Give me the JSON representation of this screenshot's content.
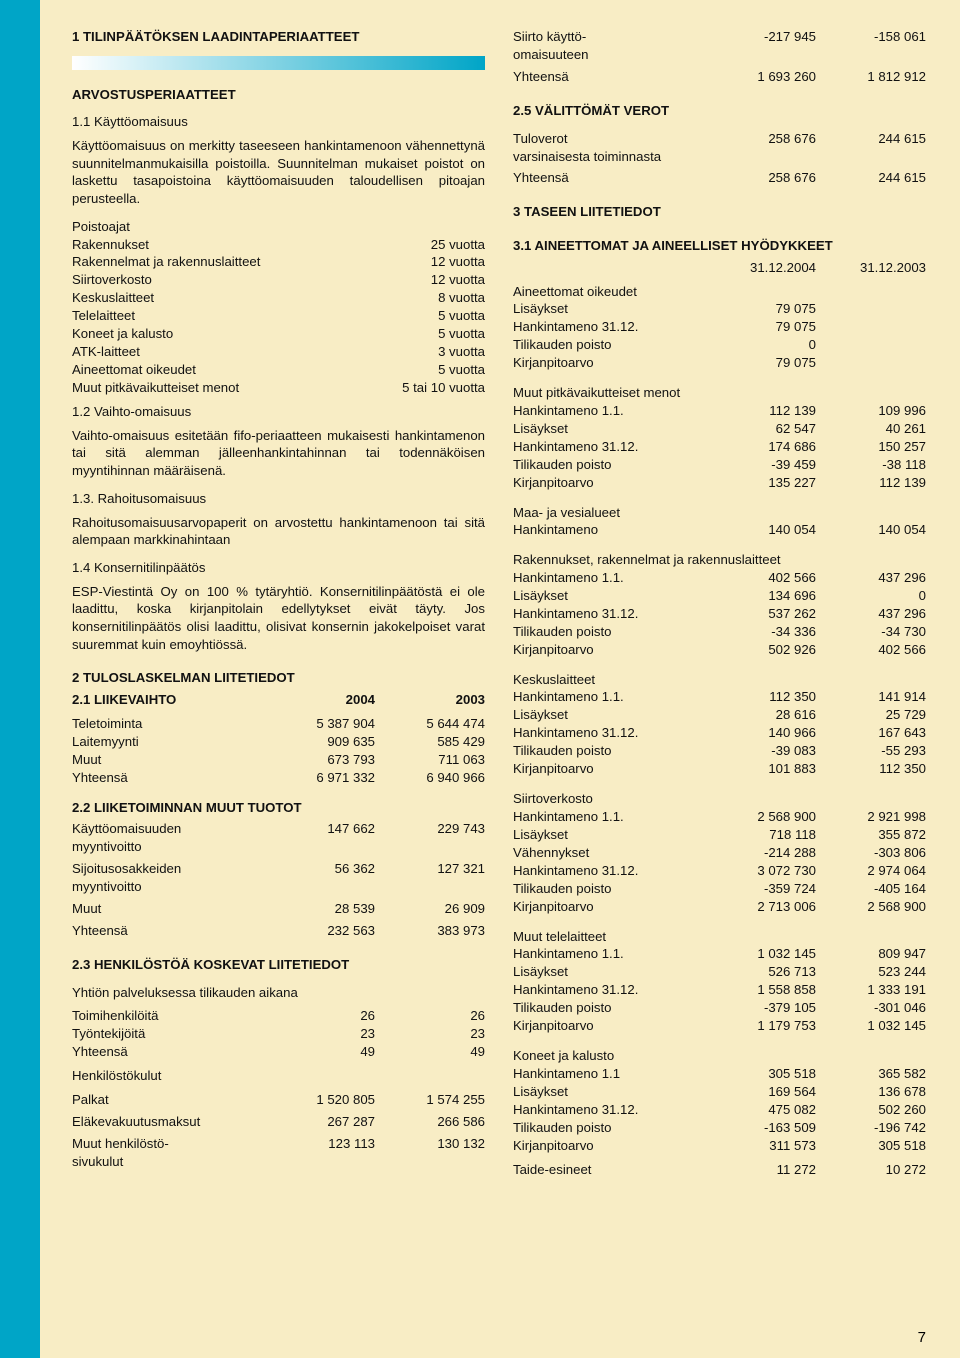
{
  "colors": {
    "page_bg": "#f8edc5",
    "sidebar": "#00a5c7",
    "banner_start": "#ffffff",
    "banner_end": "#00a5c7",
    "highlight": "rgba(110,200,200,0.22)",
    "text": "#111111"
  },
  "page_num": "7",
  "left": {
    "h1": "1 TILINPÄÄTÖKSEN LAADINTAPERIAATTEET",
    "arvostus": "ARVOSTUSPERIAATTEET",
    "s11": "1.1 Käyttöomaisuus",
    "p11a": "Käyttöomaisuus on merkitty taseeseen hankintamenoon vähennettynä suunnitelmanmukaisilla poistoilla. Suunnitelman mukaiset poistot on laskettu tasapoistoina käyttöomaisuuden taloudellisen pitoajan perusteella.",
    "poistoajat_h": "Poistoajat",
    "dep": [
      {
        "l": "Rakennukset",
        "v": "25 vuotta"
      },
      {
        "l": "Rakennelmat ja rakennuslaitteet",
        "v": "12 vuotta"
      },
      {
        "l": "Siirtoverkosto",
        "v": "12 vuotta"
      },
      {
        "l": "Keskuslaitteet",
        "v": "8 vuotta"
      },
      {
        "l": "Telelaitteet",
        "v": "5 vuotta"
      },
      {
        "l": "Koneet ja kalusto",
        "v": "5 vuotta"
      },
      {
        "l": "ATK-laitteet",
        "v": "3 vuotta"
      },
      {
        "l": "Aineettomat oikeudet",
        "v": "5 vuotta"
      },
      {
        "l": "Muut pitkävaikutteiset menot",
        "v": "5 tai 10 vuotta"
      }
    ],
    "s12": "1.2 Vaihto-omaisuus",
    "p12": "Vaihto-omaisuus esitetään fifo-periaatteen mukaisesti hankintamenon tai sitä alemman jälleenhankintahinnan tai todennäköisen myyntihinnan määräisenä.",
    "s13": "1.3. Rahoitusomaisuus",
    "p13": "Rahoitusomaisuusarvopaperit on arvostettu hankintamenoon tai sitä alempaan markkinahintaan",
    "s14": "1.4 Konsernitilinpäätös",
    "p14": "ESP-Viestintä Oy on 100 % tytäryhtiö. Konsernitilinpäätöstä ei ole laadittu, koska kirjanpitolain edellytykset eivät täyty. Jos konsernitilinpäätös olisi laadittu, olisivat konsernin jakokelpoiset varat suuremmat kuin emoyhtiössä.",
    "h2": "2 TULOSLASKELMAN LIITETIEDOT",
    "s21h": {
      "l": "2.1 LIIKEVAIHTO",
      "v1": "2004",
      "v2": "2003"
    },
    "s21": [
      {
        "l": "Teletoiminta",
        "v1": "5 387 904",
        "v2": "5 644 474"
      },
      {
        "l": "Laitemyynti",
        "v1": "909 635",
        "v2": "585 429"
      },
      {
        "l": "Muut",
        "v1": "673 793",
        "v2": "711 063"
      },
      {
        "l": "Yhteensä",
        "v1": "6 971 332",
        "v2": "6 940 966"
      }
    ],
    "s22h": "2.2 LIIKETOIMINNAN MUUT TUOTOT",
    "s22": [
      {
        "l": "Käyttöomaisuuden myyntivoitto",
        "v1": "147 662",
        "v2": "229 743"
      },
      {
        "l": "Sijoitusosakkeiden myyntivoitto",
        "v1": "56 362",
        "v2": "127 321"
      },
      {
        "l": "Muut",
        "v1": "28 539",
        "v2": "26 909"
      },
      {
        "l": "Yhteensä",
        "v1": "232 563",
        "v2": "383 973"
      }
    ],
    "s23h": "2.3 HENKILÖSTÖÄ KOSKEVAT LIITETIEDOT",
    "s23_sub": "Yhtiön palveluksessa tilikauden aikana",
    "s23a": [
      {
        "l": "Toimihenkilöitä",
        "v1": "26",
        "v2": "26"
      },
      {
        "l": "Työntekijöitä",
        "v1": "23",
        "v2": "23"
      },
      {
        "l": "Yhteensä",
        "v1": "49",
        "v2": "49"
      }
    ],
    "s23b_h": "Henkilöstökulut",
    "s23b": [
      {
        "l": "Palkat",
        "v1": "1 520 805",
        "v2": "1 574 255"
      },
      {
        "l": "Eläkevakuutusmaksut",
        "v1": "267 287",
        "v2": "266 586"
      },
      {
        "l": "Muut henkilöstö-\nsivukulut",
        "v1": "123 113",
        "v2": "130 132"
      }
    ]
  },
  "right": {
    "top": [
      {
        "l": "Siirto käyttö-\nomaisuuteen",
        "v1": "-217 945",
        "v2": "-158 061"
      },
      {
        "l": "Yhteensä",
        "v1": "1 693 260",
        "v2": "1 812 912"
      }
    ],
    "s25h": "2.5 VÄLITTÖMÄT VEROT",
    "s25": [
      {
        "l": "Tuloverot varsinaisesta toiminnasta",
        "v1": "258 676",
        "v2": "244 615"
      },
      {
        "l": "Yhteensä",
        "v1": "258 676",
        "v2": "244 615"
      }
    ],
    "h3": "3 TASEEN LIITETIEDOT",
    "s31h": "3.1 AINEETTOMAT JA AINEELLISET HYÖDYKKEET",
    "dates": {
      "v1": "31.12.2004",
      "v2": "31.12.2003"
    },
    "groups": [
      {
        "title": "Aineettomat oikeudet",
        "rows": [
          {
            "l": "Lisäykset",
            "v1": "79 075",
            "v2": ""
          },
          {
            "l": "Hankintameno 31.12.",
            "v1": "79 075",
            "v2": ""
          },
          {
            "l": "Tilikauden poisto",
            "v1": "0",
            "v2": ""
          },
          {
            "l": "Kirjanpitoarvo",
            "v1": "79 075",
            "v2": ""
          }
        ]
      },
      {
        "title": "Muut pitkävaikutteiset menot",
        "rows": [
          {
            "l": "Hankintameno 1.1.",
            "v1": "112 139",
            "v2": "109 996"
          },
          {
            "l": "Lisäykset",
            "v1": "62 547",
            "v2": "40 261"
          },
          {
            "l": "Hankintameno 31.12.",
            "v1": "174 686",
            "v2": "150 257"
          },
          {
            "l": "Tilikauden poisto",
            "v1": "-39 459",
            "v2": "-38 118"
          },
          {
            "l": "Kirjanpitoarvo",
            "v1": "135 227",
            "v2": "112 139"
          }
        ]
      },
      {
        "title": "Maa- ja vesialueet",
        "rows": [
          {
            "l": "Hankintameno",
            "v1": "140 054",
            "v2": "140 054"
          }
        ]
      },
      {
        "title": "Rakennukset, rakennelmat ja rakennuslaitteet",
        "rows": [
          {
            "l": "Hankintameno 1.1.",
            "v1": "402 566",
            "v2": "437 296"
          },
          {
            "l": "Lisäykset",
            "v1": "134 696",
            "v2": "0"
          },
          {
            "l": "Hankintameno 31.12.",
            "v1": "537 262",
            "v2": "437 296"
          },
          {
            "l": "Tilikauden poisto",
            "v1": "-34 336",
            "v2": "-34 730"
          },
          {
            "l": "Kirjanpitoarvo",
            "v1": "502 926",
            "v2": "402 566"
          }
        ]
      },
      {
        "title": "Keskuslaitteet",
        "rows": [
          {
            "l": "Hankintameno 1.1.",
            "v1": "112 350",
            "v2": "141 914"
          },
          {
            "l": "Lisäykset",
            "v1": "28 616",
            "v2": "25 729"
          },
          {
            "l": "Hankintameno 31.12.",
            "v1": "140 966",
            "v2": "167 643"
          },
          {
            "l": "Tilikauden poisto",
            "v1": "-39 083",
            "v2": "-55 293"
          },
          {
            "l": "Kirjanpitoarvo",
            "v1": "101 883",
            "v2": "112 350"
          }
        ]
      },
      {
        "title": "Siirtoverkosto",
        "rows": [
          {
            "l": "Hankintameno 1.1.",
            "v1": "2 568 900",
            "v2": "2 921 998"
          },
          {
            "l": "Lisäykset",
            "v1": "718 118",
            "v2": "355 872"
          },
          {
            "l": "Vähennykset",
            "v1": "-214 288",
            "v2": "-303 806"
          },
          {
            "l": "Hankintameno 31.12.",
            "v1": "3 072 730",
            "v2": "2 974 064"
          },
          {
            "l": "Tilikauden poisto",
            "v1": "-359 724",
            "v2": "-405 164"
          },
          {
            "l": "Kirjanpitoarvo",
            "v1": "2 713 006",
            "v2": "2 568 900"
          }
        ]
      },
      {
        "title": "Muut telelaitteet",
        "rows": [
          {
            "l": "Hankintameno 1.1.",
            "v1": "1 032 145",
            "v2": "809 947"
          },
          {
            "l": "Lisäykset",
            "v1": "526 713",
            "v2": "523 244"
          },
          {
            "l": "Hankintameno 31.12.",
            "v1": "1 558 858",
            "v2": "1 333 191"
          },
          {
            "l": "Tilikauden poisto",
            "v1": "-379 105",
            "v2": "-301 046"
          },
          {
            "l": "Kirjanpitoarvo",
            "v1": "1 179 753",
            "v2": "1 032 145"
          }
        ]
      },
      {
        "title": "Koneet ja kalusto",
        "rows": [
          {
            "l": "Hankintameno 1.1",
            "v1": "305 518",
            "v2": "365 582"
          },
          {
            "l": "Lisäykset",
            "v1": "169 564",
            "v2": "136 678"
          },
          {
            "l": "Hankintameno 31.12.",
            "v1": "475 082",
            "v2": "502 260"
          },
          {
            "l": "Tilikauden poisto",
            "v1": "-163 509",
            "v2": "-196 742"
          },
          {
            "l": "Kirjanpitoarvo",
            "v1": "311 573",
            "v2": "305 518"
          }
        ]
      },
      {
        "title": "",
        "rows": [
          {
            "l": "Taide-esineet",
            "v1": "11 272",
            "v2": "10 272"
          }
        ]
      }
    ]
  }
}
